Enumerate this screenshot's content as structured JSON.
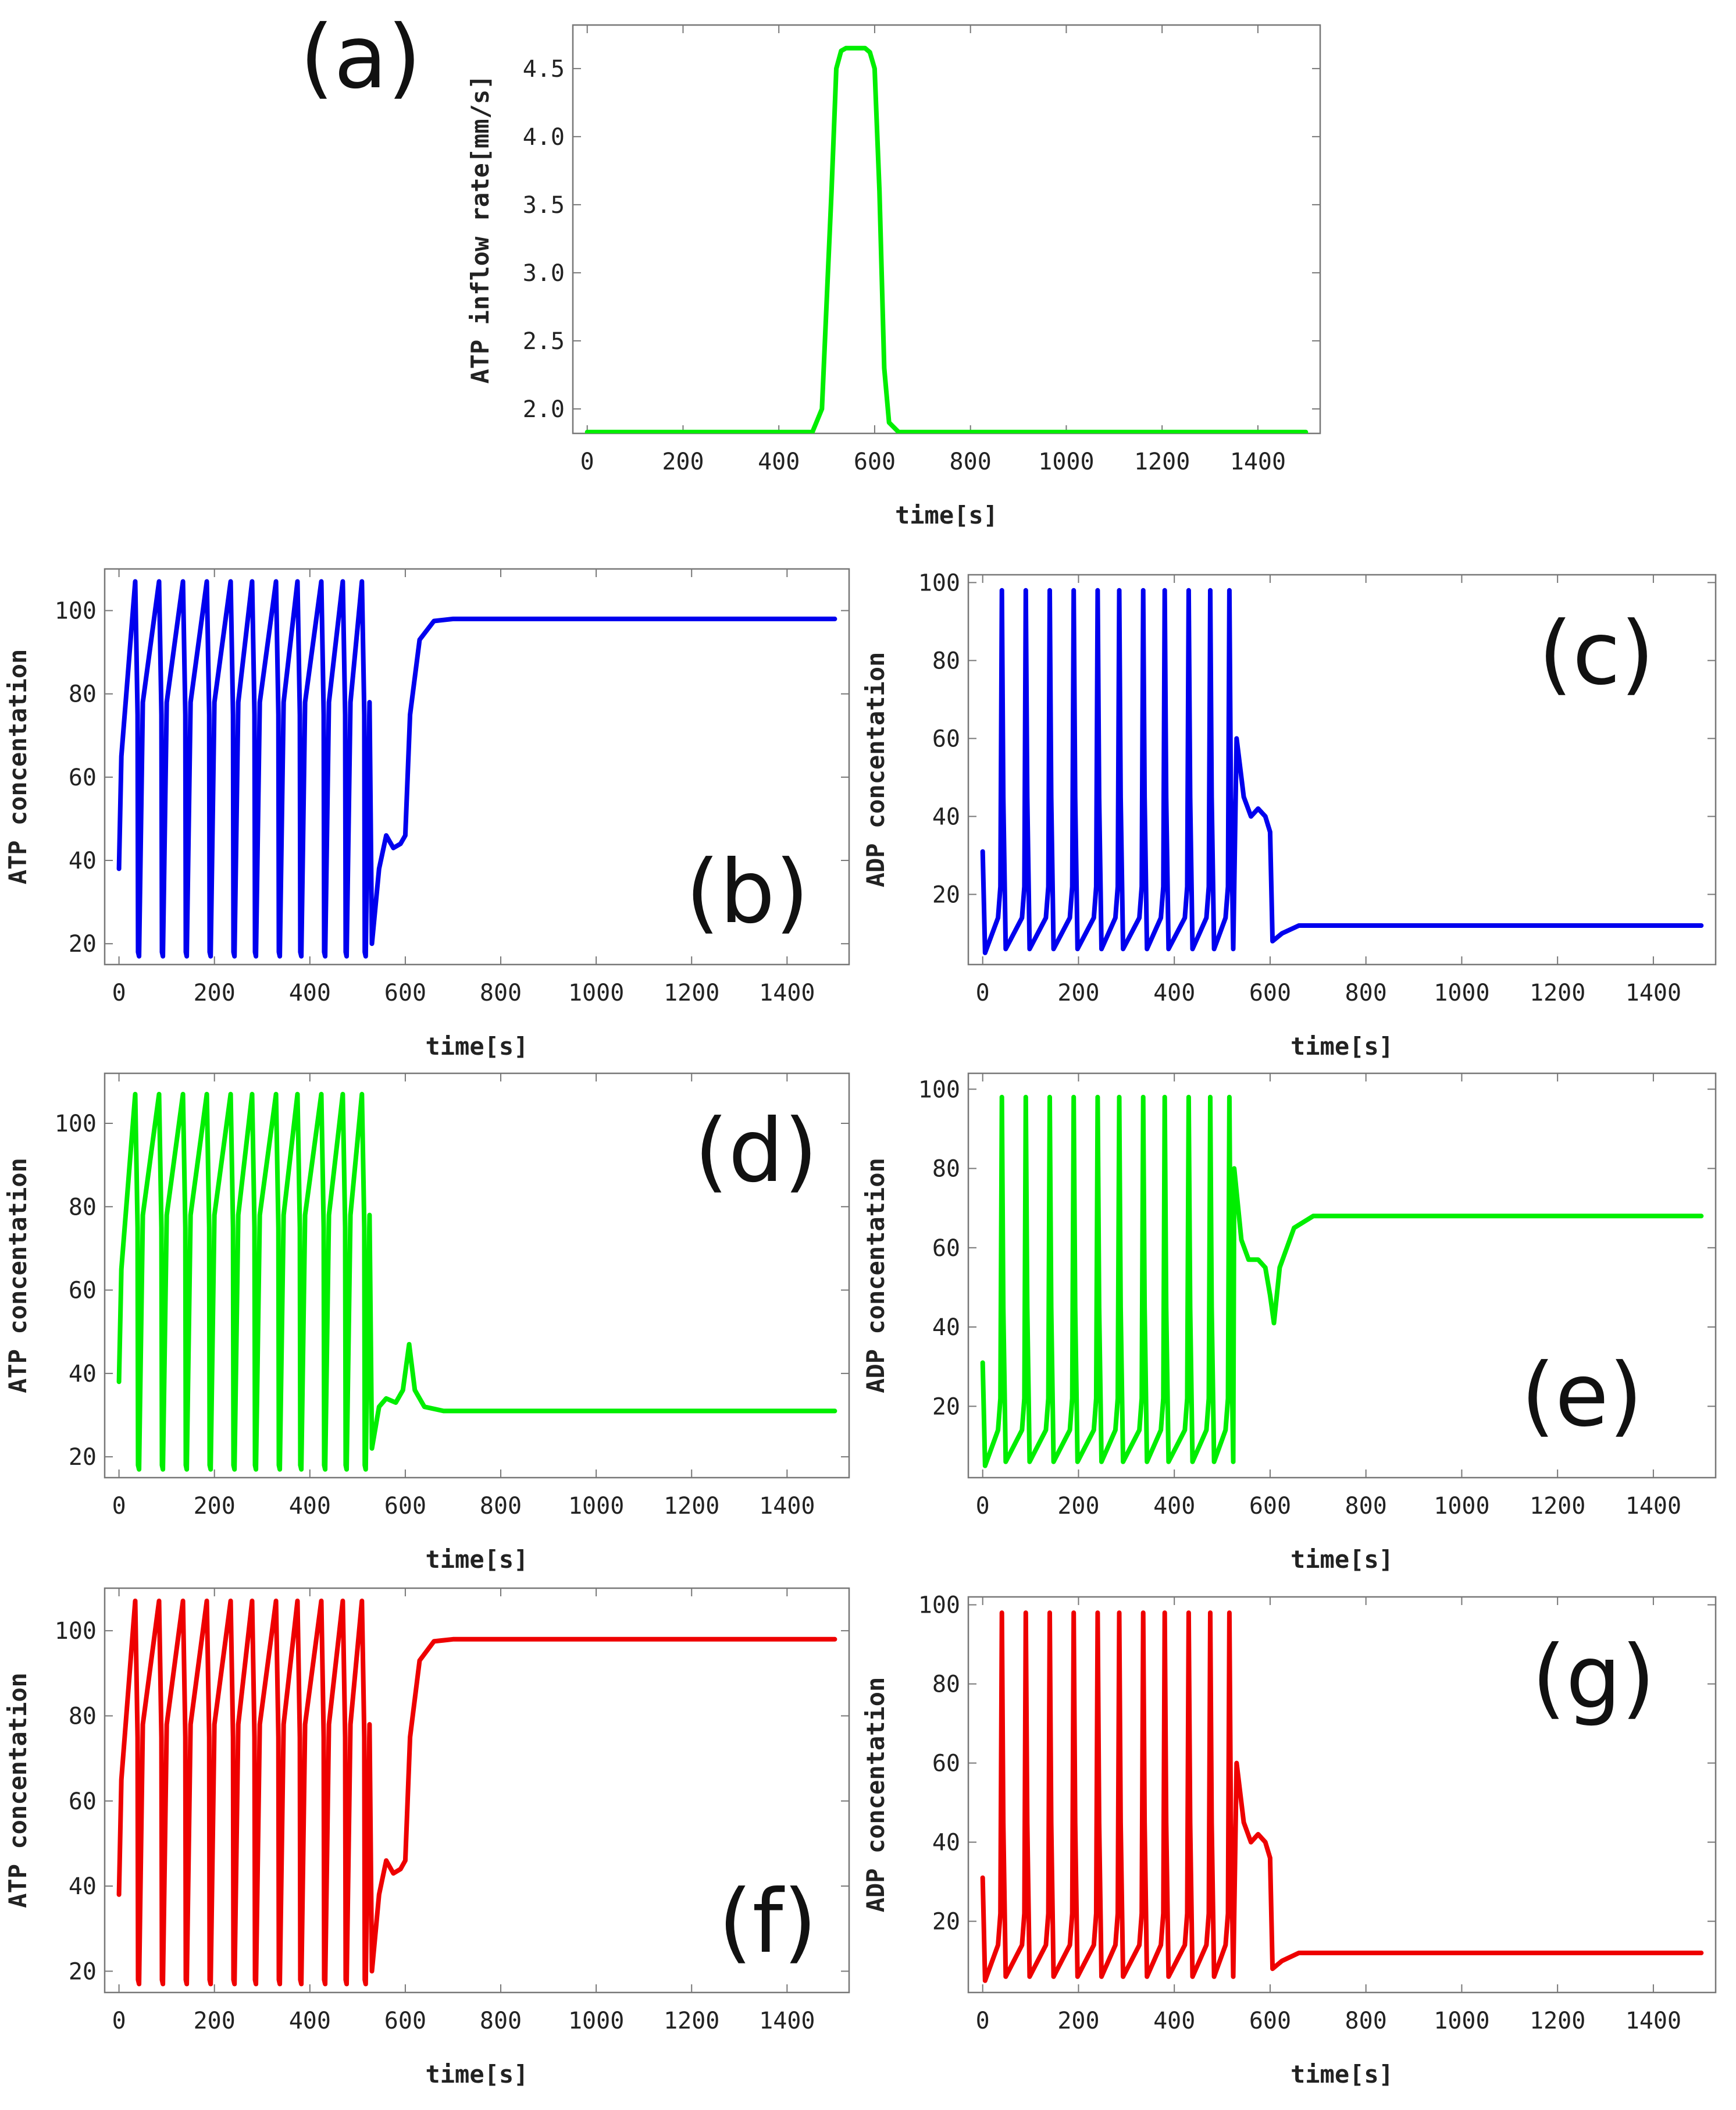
{
  "chart_data": [
    {
      "panel": "(a)",
      "type": "line",
      "xlabel": "time[s]",
      "ylabel": "ATP inflow rate[mm/s]",
      "xlim": [
        -30,
        1530
      ],
      "ylim": [
        1.82,
        4.82
      ],
      "xticks": [
        0,
        200,
        400,
        600,
        800,
        1000,
        1200,
        1400
      ],
      "yticks": [
        2.0,
        2.5,
        3.0,
        3.5,
        4.0,
        4.5
      ],
      "ytick_labels": [
        "2.0",
        "2.5",
        "3.0",
        "3.5",
        "4.0",
        "4.5"
      ],
      "series": [
        {
          "color": "#00ee00",
          "model": "pulse",
          "x": [
            0,
            470,
            490,
            510,
            520,
            530,
            540,
            550,
            560,
            570,
            580,
            590,
            600,
            610,
            620,
            630,
            650,
            1500
          ],
          "y": [
            1.83,
            1.83,
            2.0,
            3.6,
            4.5,
            4.63,
            4.65,
            4.65,
            4.65,
            4.65,
            4.65,
            4.62,
            4.5,
            3.6,
            2.3,
            1.9,
            1.83,
            1.83
          ]
        }
      ]
    },
    {
      "panel": "(b)",
      "type": "line",
      "xlabel": "time[s]",
      "ylabel": "ATP concentation",
      "xlim": [
        -30,
        1530
      ],
      "ylim": [
        15,
        110
      ],
      "xticks": [
        0,
        200,
        400,
        600,
        800,
        1000,
        1200,
        1400
      ],
      "yticks": [
        20,
        40,
        60,
        80,
        100
      ],
      "series": [
        {
          "color": "#0000ee",
          "model": "atp",
          "y0": 38,
          "ymin": 17,
          "ymax": 107,
          "ymid": 78,
          "cycles": [
            [
              40,
              2
            ],
            [
              90,
              2
            ],
            [
              140,
              2
            ],
            [
              190,
              2
            ],
            [
              240,
              2
            ],
            [
              285,
              2
            ],
            [
              335,
              2
            ],
            [
              380,
              2
            ],
            [
              430,
              2
            ],
            [
              475,
              2
            ],
            [
              515,
              2
            ]
          ],
          "tail": [
            [
              530,
              20
            ],
            [
              545,
              38
            ],
            [
              560,
              46
            ],
            [
              575,
              43
            ],
            [
              590,
              44
            ],
            [
              600,
              46
            ],
            [
              610,
              75
            ],
            [
              630,
              93
            ],
            [
              660,
              97.5
            ],
            [
              700,
              98
            ],
            [
              1500,
              98
            ]
          ]
        }
      ]
    },
    {
      "panel": "(c)",
      "type": "line",
      "xlabel": "time[s]",
      "ylabel": "ADP concentation",
      "xlim": [
        -30,
        1530
      ],
      "ylim": [
        2,
        102
      ],
      "xticks": [
        0,
        200,
        400,
        600,
        800,
        1000,
        1200,
        1400
      ],
      "yticks": [
        20,
        40,
        60,
        80,
        100
      ],
      "series": [
        {
          "color": "#0000ee",
          "model": "adp",
          "y0": 31,
          "ymin": 5,
          "ymax": 98,
          "ymid": 14,
          "cycles": [
            [
              40,
              2
            ],
            [
              90,
              2
            ],
            [
              140,
              2
            ],
            [
              190,
              2
            ],
            [
              240,
              2
            ],
            [
              285,
              2
            ],
            [
              335,
              2
            ],
            [
              380,
              2
            ],
            [
              430,
              2
            ],
            [
              475,
              2
            ],
            [
              515,
              2
            ]
          ],
          "tail": [
            [
              530,
              60
            ],
            [
              545,
              45
            ],
            [
              560,
              40
            ],
            [
              575,
              42
            ],
            [
              590,
              40
            ],
            [
              600,
              36
            ],
            [
              605,
              8
            ],
            [
              625,
              10
            ],
            [
              660,
              12
            ],
            [
              1500,
              12
            ]
          ]
        }
      ]
    },
    {
      "panel": "(d)",
      "type": "line",
      "xlabel": "time[s]",
      "ylabel": "ATP concentation",
      "xlim": [
        -30,
        1530
      ],
      "ylim": [
        15,
        112
      ],
      "xticks": [
        0,
        200,
        400,
        600,
        800,
        1000,
        1200,
        1400
      ],
      "yticks": [
        20,
        40,
        60,
        80,
        100
      ],
      "series": [
        {
          "color": "#00ee00",
          "model": "atp",
          "y0": 38,
          "ymin": 17,
          "ymax": 107,
          "ymid": 78,
          "cycles": [
            [
              40,
              2
            ],
            [
              90,
              2
            ],
            [
              140,
              2
            ],
            [
              190,
              2
            ],
            [
              240,
              2
            ],
            [
              285,
              2
            ],
            [
              335,
              2
            ],
            [
              380,
              2
            ],
            [
              430,
              2
            ],
            [
              475,
              2
            ],
            [
              515,
              2
            ]
          ],
          "tail": [
            [
              530,
              22
            ],
            [
              545,
              32
            ],
            [
              560,
              34
            ],
            [
              580,
              33
            ],
            [
              595,
              36
            ],
            [
              608,
              47
            ],
            [
              620,
              36
            ],
            [
              640,
              32
            ],
            [
              680,
              31
            ],
            [
              1500,
              31
            ]
          ]
        }
      ]
    },
    {
      "panel": "(e)",
      "type": "line",
      "xlabel": "time[s]",
      "ylabel": "ADP concentation",
      "xlim": [
        -30,
        1530
      ],
      "ylim": [
        2,
        104
      ],
      "xticks": [
        0,
        200,
        400,
        600,
        800,
        1000,
        1200,
        1400
      ],
      "yticks": [
        20,
        40,
        60,
        80,
        100
      ],
      "series": [
        {
          "color": "#00ee00",
          "model": "adp",
          "y0": 31,
          "ymin": 5,
          "ymax": 98,
          "ymid": 14,
          "cycles": [
            [
              40,
              2
            ],
            [
              90,
              2
            ],
            [
              140,
              2
            ],
            [
              190,
              2
            ],
            [
              240,
              2
            ],
            [
              285,
              2
            ],
            [
              335,
              2
            ],
            [
              380,
              2
            ],
            [
              430,
              2
            ],
            [
              475,
              2
            ],
            [
              515,
              2
            ]
          ],
          "tail": [
            [
              525,
              80
            ],
            [
              540,
              62
            ],
            [
              555,
              57
            ],
            [
              575,
              57
            ],
            [
              590,
              55
            ],
            [
              600,
              48
            ],
            [
              608,
              41
            ],
            [
              620,
              55
            ],
            [
              650,
              65
            ],
            [
              690,
              68
            ],
            [
              1500,
              68
            ]
          ]
        }
      ]
    },
    {
      "panel": "(f)",
      "type": "line",
      "xlabel": "time[s]",
      "ylabel": "ATP concentation",
      "xlim": [
        -30,
        1530
      ],
      "ylim": [
        15,
        110
      ],
      "xticks": [
        0,
        200,
        400,
        600,
        800,
        1000,
        1200,
        1400
      ],
      "yticks": [
        20,
        40,
        60,
        80,
        100
      ],
      "series": [
        {
          "color": "#ee0000",
          "model": "atp",
          "y0": 38,
          "ymin": 17,
          "ymax": 107,
          "ymid": 78,
          "cycles": [
            [
              40,
              2
            ],
            [
              90,
              2
            ],
            [
              140,
              2
            ],
            [
              190,
              2
            ],
            [
              240,
              2
            ],
            [
              285,
              2
            ],
            [
              335,
              2
            ],
            [
              380,
              2
            ],
            [
              430,
              2
            ],
            [
              475,
              2
            ],
            [
              515,
              2
            ]
          ],
          "tail": [
            [
              530,
              20
            ],
            [
              545,
              38
            ],
            [
              560,
              46
            ],
            [
              575,
              43
            ],
            [
              590,
              44
            ],
            [
              600,
              46
            ],
            [
              610,
              75
            ],
            [
              630,
              93
            ],
            [
              660,
              97.5
            ],
            [
              700,
              98
            ],
            [
              1500,
              98
            ]
          ]
        }
      ]
    },
    {
      "panel": "(g)",
      "type": "line",
      "xlabel": "time[s]",
      "ylabel": "ADP concentation",
      "xlim": [
        -30,
        1530
      ],
      "ylim": [
        2,
        102
      ],
      "xticks": [
        0,
        200,
        400,
        600,
        800,
        1000,
        1200,
        1400
      ],
      "yticks": [
        20,
        40,
        60,
        80,
        100
      ],
      "series": [
        {
          "color": "#ee0000",
          "model": "adp",
          "y0": 31,
          "ymin": 5,
          "ymax": 98,
          "ymid": 14,
          "cycles": [
            [
              40,
              2
            ],
            [
              90,
              2
            ],
            [
              140,
              2
            ],
            [
              190,
              2
            ],
            [
              240,
              2
            ],
            [
              285,
              2
            ],
            [
              335,
              2
            ],
            [
              380,
              2
            ],
            [
              430,
              2
            ],
            [
              475,
              2
            ],
            [
              515,
              2
            ]
          ],
          "tail": [
            [
              530,
              60
            ],
            [
              545,
              45
            ],
            [
              560,
              40
            ],
            [
              575,
              42
            ],
            [
              590,
              40
            ],
            [
              600,
              36
            ],
            [
              605,
              8
            ],
            [
              625,
              10
            ],
            [
              660,
              12
            ],
            [
              1500,
              12
            ]
          ]
        }
      ]
    }
  ]
}
